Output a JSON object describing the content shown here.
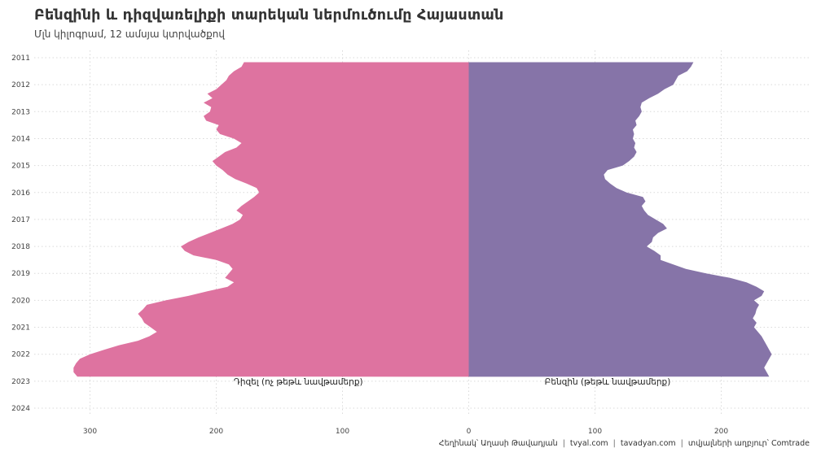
{
  "title": "Բենզինի և դիզվառելիքի տարեկան ներմուծումը Հայաստան",
  "subtitle": "Մլն կիլոգրամ, 12 ամսյա կտրվածքով",
  "caption": {
    "author": "Հեղինակ՝ Աղասի Թավադյան",
    "site1": "tvyal.com",
    "site2": "tavadyan.com",
    "source": "տվյալների աղբյուր՝ Comtrade",
    "separator": "|"
  },
  "chart_data": {
    "type": "area",
    "orientation": "horizontal-mirrored",
    "title": "Բենզինի և դիզվառելիքի տարեկան ներմուծումը Հայաստան",
    "subtitle": "Մլն կիլոգրամ, 12 ամսյա կտրվածքով",
    "y_axis": {
      "type": "date",
      "tick_labels": [
        "2011",
        "2012",
        "2013",
        "2014",
        "2015",
        "2016",
        "2017",
        "2018",
        "2019",
        "2020",
        "2021",
        "2022",
        "2023",
        "2024"
      ],
      "range": [
        "2011-01",
        "2024-01"
      ]
    },
    "x_axis": {
      "tick_labels": [
        "300",
        "200",
        "100",
        "0",
        "100",
        "200"
      ],
      "tick_values": [
        -300,
        -200,
        -100,
        0,
        100,
        200
      ],
      "range": [
        -335,
        270
      ]
    },
    "grid": true,
    "colors": {
      "diesel": "#de73a0",
      "gasoline": "#8674a8",
      "grid": "#d9d9d9"
    },
    "series": [
      {
        "name": "Դիզել (ոչ թեթև նավթամերք)",
        "side": "left",
        "points": [
          [
            "2011-03",
            178
          ],
          [
            "2011-05",
            180
          ],
          [
            "2011-07",
            186
          ],
          [
            "2011-09",
            190
          ],
          [
            "2011-11",
            192
          ],
          [
            "2012-01",
            196
          ],
          [
            "2012-03",
            200
          ],
          [
            "2012-05",
            207
          ],
          [
            "2012-07",
            203
          ],
          [
            "2012-09",
            210
          ],
          [
            "2012-11",
            204
          ],
          [
            "2013-01",
            205
          ],
          [
            "2013-03",
            210
          ],
          [
            "2013-05",
            208
          ],
          [
            "2013-07",
            198
          ],
          [
            "2013-09",
            200
          ],
          [
            "2013-11",
            197
          ],
          [
            "2014-01",
            186
          ],
          [
            "2014-03",
            180
          ],
          [
            "2014-05",
            184
          ],
          [
            "2014-07",
            193
          ],
          [
            "2014-09",
            198
          ],
          [
            "2014-11",
            203
          ],
          [
            "2015-01",
            200
          ],
          [
            "2015-03",
            195
          ],
          [
            "2015-05",
            191
          ],
          [
            "2015-07",
            185
          ],
          [
            "2015-09",
            176
          ],
          [
            "2015-11",
            168
          ],
          [
            "2016-01",
            166
          ],
          [
            "2016-03",
            170
          ],
          [
            "2016-05",
            175
          ],
          [
            "2016-07",
            180
          ],
          [
            "2016-09",
            184
          ],
          [
            "2016-11",
            179
          ],
          [
            "2017-01",
            181
          ],
          [
            "2017-03",
            187
          ],
          [
            "2017-05",
            196
          ],
          [
            "2017-07",
            205
          ],
          [
            "2017-09",
            214
          ],
          [
            "2017-11",
            222
          ],
          [
            "2018-01",
            228
          ],
          [
            "2018-03",
            225
          ],
          [
            "2018-05",
            218
          ],
          [
            "2018-07",
            200
          ],
          [
            "2018-09",
            190
          ],
          [
            "2018-11",
            187
          ],
          [
            "2019-01",
            190
          ],
          [
            "2019-03",
            193
          ],
          [
            "2019-05",
            186
          ],
          [
            "2019-07",
            191
          ],
          [
            "2019-09",
            207
          ],
          [
            "2019-11",
            222
          ],
          [
            "2020-01",
            240
          ],
          [
            "2020-03",
            255
          ],
          [
            "2020-05",
            258
          ],
          [
            "2020-07",
            262
          ],
          [
            "2020-09",
            259
          ],
          [
            "2020-11",
            257
          ],
          [
            "2021-01",
            252
          ],
          [
            "2021-03",
            247
          ],
          [
            "2021-05",
            253
          ],
          [
            "2021-07",
            262
          ],
          [
            "2021-09",
            277
          ],
          [
            "2021-11",
            289
          ],
          [
            "2022-01",
            300
          ],
          [
            "2022-03",
            308
          ],
          [
            "2022-05",
            311
          ],
          [
            "2022-07",
            313
          ],
          [
            "2022-09",
            313
          ],
          [
            "2022-11",
            310
          ]
        ]
      },
      {
        "name": "Բենզին (թեթև նավթամերք)",
        "side": "right",
        "points": [
          [
            "2011-03",
            178
          ],
          [
            "2011-05",
            176
          ],
          [
            "2011-07",
            173
          ],
          [
            "2011-09",
            166
          ],
          [
            "2011-11",
            164
          ],
          [
            "2012-01",
            162
          ],
          [
            "2012-03",
            155
          ],
          [
            "2012-05",
            150
          ],
          [
            "2012-07",
            143
          ],
          [
            "2012-09",
            137
          ],
          [
            "2012-11",
            136
          ],
          [
            "2013-01",
            137
          ],
          [
            "2013-03",
            135
          ],
          [
            "2013-05",
            132
          ],
          [
            "2013-07",
            133
          ],
          [
            "2013-09",
            130
          ],
          [
            "2013-11",
            131
          ],
          [
            "2014-01",
            130
          ],
          [
            "2014-03",
            132
          ],
          [
            "2014-05",
            131
          ],
          [
            "2014-07",
            133
          ],
          [
            "2014-09",
            131
          ],
          [
            "2014-11",
            127
          ],
          [
            "2015-01",
            122
          ],
          [
            "2015-03",
            110
          ],
          [
            "2015-05",
            107
          ],
          [
            "2015-07",
            108
          ],
          [
            "2015-09",
            112
          ],
          [
            "2015-11",
            117
          ],
          [
            "2016-01",
            125
          ],
          [
            "2016-03",
            138
          ],
          [
            "2016-05",
            140
          ],
          [
            "2016-07",
            137
          ],
          [
            "2016-09",
            139
          ],
          [
            "2016-11",
            142
          ],
          [
            "2017-01",
            148
          ],
          [
            "2017-03",
            154
          ],
          [
            "2017-05",
            157
          ],
          [
            "2017-07",
            150
          ],
          [
            "2017-09",
            146
          ],
          [
            "2017-11",
            145
          ],
          [
            "2018-01",
            141
          ],
          [
            "2018-03",
            147
          ],
          [
            "2018-05",
            152
          ],
          [
            "2018-07",
            152
          ],
          [
            "2018-09",
            162
          ],
          [
            "2018-11",
            172
          ],
          [
            "2019-01",
            188
          ],
          [
            "2019-03",
            207
          ],
          [
            "2019-05",
            220
          ],
          [
            "2019-07",
            228
          ],
          [
            "2019-09",
            234
          ],
          [
            "2019-11",
            232
          ],
          [
            "2020-01",
            226
          ],
          [
            "2020-03",
            230
          ],
          [
            "2020-05",
            228
          ],
          [
            "2020-07",
            227
          ],
          [
            "2020-09",
            225
          ],
          [
            "2020-11",
            228
          ],
          [
            "2021-01",
            226
          ],
          [
            "2021-03",
            229
          ],
          [
            "2021-05",
            232
          ],
          [
            "2021-07",
            234
          ],
          [
            "2021-09",
            236
          ],
          [
            "2021-11",
            238
          ],
          [
            "2022-01",
            240
          ],
          [
            "2022-03",
            238
          ],
          [
            "2022-05",
            236
          ],
          [
            "2022-07",
            234
          ],
          [
            "2022-09",
            236
          ],
          [
            "2022-11",
            238
          ]
        ]
      }
    ]
  }
}
